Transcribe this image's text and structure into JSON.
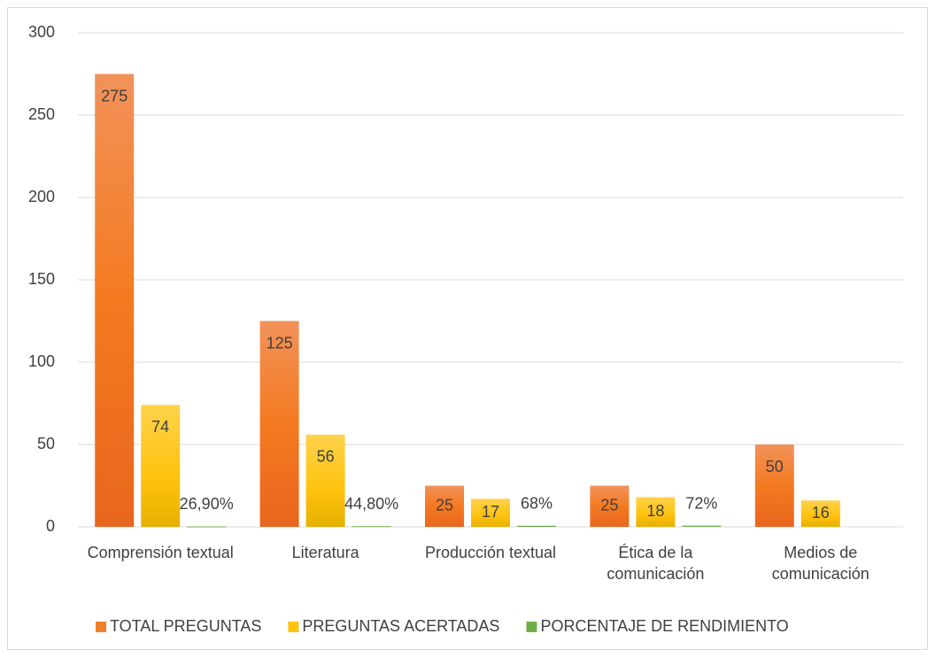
{
  "chart_data": {
    "type": "bar",
    "categories": [
      "Comprensión textual",
      "Literatura",
      "Producción textual",
      "Ética de la comunicación",
      "Medios de comunicación"
    ],
    "series": [
      {
        "name": "TOTAL PREGUNTAS",
        "color": "#f07f2c",
        "values": [
          275,
          125,
          25,
          25,
          50
        ]
      },
      {
        "name": "PREGUNTAS ACERTADAS",
        "color": "#ffc20e",
        "values": [
          74,
          56,
          17,
          18,
          16
        ]
      },
      {
        "name": "PORCENTAJE DE RENDIMIENTO",
        "color": "#70ad47",
        "values": [
          0.269,
          0.448,
          0.68,
          0.72,
          null
        ],
        "value_labels": [
          "26,90%",
          "44,80%",
          "68%",
          "72%",
          null
        ]
      }
    ],
    "ylim": [
      0,
      300
    ],
    "yticks": [
      0,
      50,
      100,
      150,
      200,
      250,
      300
    ],
    "grid": true,
    "legend": "bottom"
  }
}
